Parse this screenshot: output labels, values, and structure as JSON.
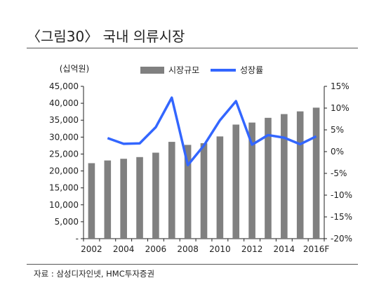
{
  "title": "〈그림30〉 국내 의류시장",
  "source": "자료 : 삼성디자인넷, HMC투자증권",
  "colors": {
    "bar": "#808080",
    "line": "#3366ff",
    "axis": "#222222"
  },
  "chart_data": {
    "type": "bar",
    "unit_label": "(십억원)",
    "categories": [
      "2002",
      "2003",
      "2004",
      "2005",
      "2006",
      "2007",
      "2008",
      "2009",
      "2010",
      "2011",
      "2012",
      "2013",
      "2014",
      "2015",
      "2016F"
    ],
    "x_tick_labels": [
      "2002",
      "2004",
      "2006",
      "2008",
      "2010",
      "2012",
      "2014",
      "2016F"
    ],
    "legend_position": "top-center",
    "series": [
      {
        "name": "시장규모",
        "type": "bar",
        "axis": "left",
        "values": [
          22300,
          23100,
          23600,
          24100,
          25400,
          28600,
          27700,
          28200,
          30200,
          33700,
          34300,
          35700,
          36800,
          37600,
          38700
        ]
      },
      {
        "name": "성장률",
        "type": "line",
        "axis": "right",
        "values": [
          null,
          3.1,
          1.8,
          1.9,
          5.6,
          12.4,
          -3.1,
          1.4,
          7.2,
          11.6,
          1.6,
          3.8,
          3.2,
          1.7,
          3.5
        ]
      }
    ],
    "y_left": {
      "min": 0,
      "max": 45000,
      "ticks": [
        "-",
        "5,000",
        "10,000",
        "15,000",
        "20,000",
        "25,000",
        "30,000",
        "35,000",
        "40,000",
        "45,000"
      ]
    },
    "y_right": {
      "min": -20,
      "max": 15,
      "ticks": [
        "-20%",
        "-15%",
        "-10%",
        "-5%",
        "0%",
        "5%",
        "10%",
        "15%"
      ]
    },
    "grid": false
  }
}
